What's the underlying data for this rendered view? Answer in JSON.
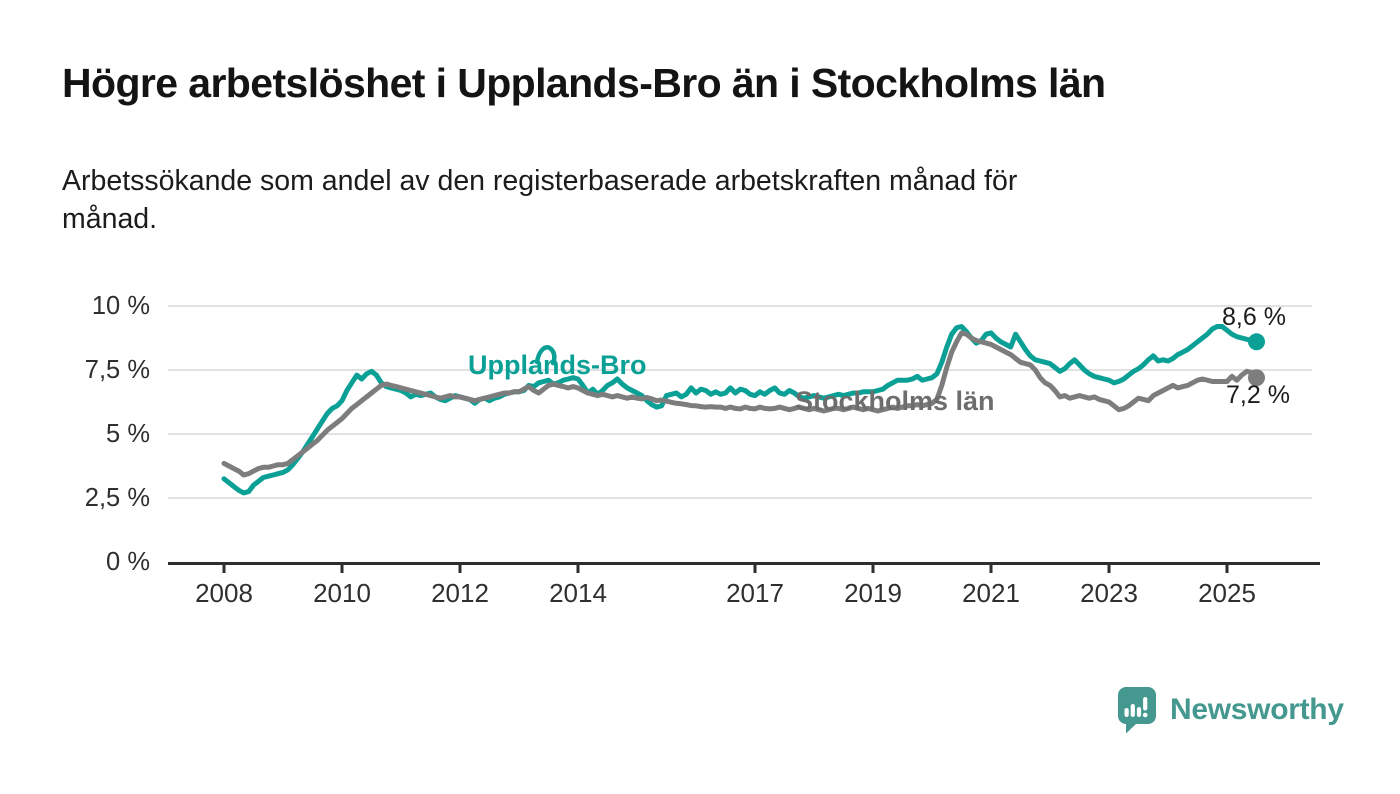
{
  "header": {
    "title": "Högre arbetslöshet i Upplands-Bro än i Stockholms län",
    "subtitle": "Arbetssökande som andel av den registerbaserade arbetskraften månad för\nmånad."
  },
  "footer": {
    "brand": "Newsworthy",
    "brand_color": "#45988f"
  },
  "chart_data": {
    "type": "line",
    "title": "Högre arbetslöshet i Upplands-Bro än i Stockholms län",
    "subtitle": "Arbetssökande som andel av den registerbaserade arbetskraften månad för månad.",
    "unit": "%",
    "x_start_year": 2008,
    "x_resolution": "monthly",
    "x_end": "2025-07",
    "ylim": [
      0,
      10.8
    ],
    "grid": "horizontal",
    "legend_position": "inline-labels",
    "axis_color": "#2e2e2e",
    "grid_color": "#d9d9d9",
    "y_ticks": [
      {
        "label": "0 %",
        "value": 0
      },
      {
        "label": "2,5 %",
        "value": 2.5
      },
      {
        "label": "5 %",
        "value": 5
      },
      {
        "label": "7,5 %",
        "value": 7.5
      },
      {
        "label": "10 %",
        "value": 10
      }
    ],
    "x_ticks": [
      {
        "label": "2008",
        "year": 2008
      },
      {
        "label": "2010",
        "year": 2010
      },
      {
        "label": "2012",
        "year": 2012
      },
      {
        "label": "2014",
        "year": 2014
      },
      {
        "label": "2017",
        "year": 2017
      },
      {
        "label": "2019",
        "year": 2019
      },
      {
        "label": "2021",
        "year": 2021
      },
      {
        "label": "2023",
        "year": 2023
      },
      {
        "label": "2025",
        "year": 2025
      }
    ],
    "series": [
      {
        "name": "Upplands-Bro",
        "color": "#0aa096",
        "end_label": "8,6 %",
        "end_value": 8.6,
        "values": [
          3.25,
          3.1,
          2.95,
          2.8,
          2.7,
          2.75,
          3.0,
          3.15,
          3.3,
          3.35,
          3.4,
          3.45,
          3.5,
          3.6,
          3.8,
          4.05,
          4.3,
          4.6,
          4.9,
          5.2,
          5.5,
          5.8,
          6.0,
          6.1,
          6.3,
          6.7,
          7.0,
          7.3,
          7.15,
          7.35,
          7.45,
          7.3,
          7.0,
          6.85,
          6.8,
          6.75,
          6.7,
          6.6,
          6.45,
          6.55,
          6.5,
          6.55,
          6.6,
          6.45,
          6.35,
          6.3,
          6.4,
          6.5,
          6.45,
          6.4,
          6.35,
          6.2,
          6.35,
          6.4,
          6.3,
          6.4,
          6.45,
          6.55,
          6.6,
          6.65,
          6.65,
          6.7,
          6.9,
          6.85,
          7.0,
          7.05,
          7.1,
          6.95,
          7.0,
          7.1,
          7.15,
          7.2,
          7.15,
          6.9,
          6.6,
          6.75,
          6.55,
          6.7,
          6.9,
          7.0,
          7.15,
          6.95,
          6.8,
          6.7,
          6.6,
          6.5,
          6.3,
          6.15,
          6.05,
          6.1,
          6.5,
          6.55,
          6.6,
          6.45,
          6.55,
          6.8,
          6.6,
          6.75,
          6.7,
          6.55,
          6.65,
          6.55,
          6.6,
          6.8,
          6.6,
          6.75,
          6.7,
          6.55,
          6.5,
          6.65,
          6.55,
          6.7,
          6.8,
          6.6,
          6.55,
          6.7,
          6.6,
          6.45,
          6.4,
          6.45,
          6.5,
          6.45,
          6.4,
          6.45,
          6.5,
          6.55,
          6.5,
          6.55,
          6.6,
          6.6,
          6.65,
          6.65,
          6.65,
          6.7,
          6.75,
          6.9,
          7.0,
          7.1,
          7.1,
          7.1,
          7.15,
          7.25,
          7.1,
          7.15,
          7.2,
          7.35,
          7.8,
          8.4,
          8.9,
          9.15,
          9.2,
          9.0,
          8.75,
          8.55,
          8.65,
          8.9,
          8.95,
          8.75,
          8.6,
          8.5,
          8.4,
          8.9,
          8.6,
          8.3,
          8.05,
          7.9,
          7.85,
          7.8,
          7.75,
          7.6,
          7.45,
          7.55,
          7.75,
          7.9,
          7.7,
          7.5,
          7.35,
          7.25,
          7.2,
          7.15,
          7.1,
          7.0,
          7.05,
          7.15,
          7.3,
          7.45,
          7.55,
          7.7,
          7.9,
          8.05,
          7.85,
          7.9,
          7.85,
          7.95,
          8.1,
          8.2,
          8.3,
          8.45,
          8.6,
          8.75,
          8.9,
          9.1,
          9.2,
          9.2,
          9.05,
          8.9,
          8.8,
          8.75,
          8.7,
          8.65,
          8.6
        ]
      },
      {
        "name": "Stockholms län",
        "color": "#7d7d7d",
        "label_color": "#6d6d6d",
        "end_label": "7,2 %",
        "end_value": 7.2,
        "values": [
          3.85,
          3.75,
          3.65,
          3.55,
          3.4,
          3.45,
          3.55,
          3.65,
          3.7,
          3.7,
          3.75,
          3.8,
          3.8,
          3.85,
          4.0,
          4.15,
          4.3,
          4.45,
          4.6,
          4.75,
          4.95,
          5.15,
          5.3,
          5.45,
          5.6,
          5.8,
          6.0,
          6.15,
          6.3,
          6.45,
          6.6,
          6.75,
          6.9,
          6.95,
          6.9,
          6.85,
          6.8,
          6.75,
          6.7,
          6.65,
          6.6,
          6.55,
          6.5,
          6.45,
          6.4,
          6.45,
          6.5,
          6.45,
          6.45,
          6.4,
          6.35,
          6.3,
          6.35,
          6.4,
          6.45,
          6.5,
          6.55,
          6.6,
          6.6,
          6.65,
          6.65,
          6.75,
          6.85,
          6.7,
          6.6,
          6.75,
          6.9,
          6.95,
          6.9,
          6.85,
          6.8,
          6.85,
          6.8,
          6.7,
          6.6,
          6.55,
          6.5,
          6.55,
          6.5,
          6.45,
          6.5,
          6.45,
          6.4,
          6.45,
          6.4,
          6.37,
          6.43,
          6.37,
          6.3,
          6.33,
          6.28,
          6.24,
          6.2,
          6.18,
          6.15,
          6.11,
          6.1,
          6.07,
          6.05,
          6.07,
          6.05,
          6.05,
          6.0,
          6.05,
          6.0,
          5.98,
          6.05,
          6.0,
          5.98,
          6.05,
          6.0,
          5.98,
          6.0,
          6.05,
          6.0,
          5.95,
          6.0,
          6.05,
          6.0,
          5.95,
          6.0,
          5.95,
          5.9,
          5.95,
          6.0,
          6.0,
          5.95,
          6.0,
          6.05,
          6.0,
          5.95,
          6.0,
          5.95,
          5.9,
          5.95,
          6.0,
          6.05,
          6.0,
          6.05,
          6.1,
          6.1,
          6.15,
          6.1,
          6.15,
          6.2,
          6.35,
          6.9,
          7.6,
          8.2,
          8.6,
          8.95,
          8.9,
          8.75,
          8.65,
          8.6,
          8.55,
          8.5,
          8.4,
          8.3,
          8.2,
          8.1,
          7.95,
          7.8,
          7.75,
          7.7,
          7.5,
          7.2,
          7.0,
          6.9,
          6.7,
          6.45,
          6.5,
          6.4,
          6.45,
          6.5,
          6.45,
          6.4,
          6.45,
          6.35,
          6.3,
          6.25,
          6.1,
          5.95,
          6.0,
          6.1,
          6.25,
          6.4,
          6.35,
          6.3,
          6.5,
          6.6,
          6.7,
          6.8,
          6.9,
          6.8,
          6.85,
          6.9,
          7.0,
          7.1,
          7.15,
          7.1,
          7.05,
          7.05,
          7.05,
          7.05,
          7.25,
          7.1,
          7.3,
          7.45,
          7.4,
          7.2
        ]
      }
    ]
  }
}
